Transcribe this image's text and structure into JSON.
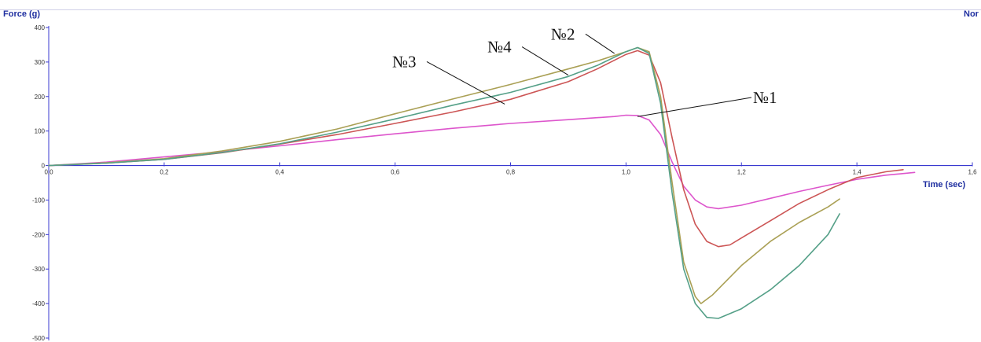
{
  "chart_data": {
    "type": "line",
    "ylabel": "Force (g)",
    "xlabel": "Time (sec)",
    "right_label": "Nor",
    "xlim": [
      0,
      1.6
    ],
    "ylim": [
      -500,
      400
    ],
    "x_ticks": [
      0,
      0.2,
      0.4,
      0.6,
      0.8,
      1.0,
      1.2,
      1.4,
      1.6
    ],
    "x_tick_labels": [
      "0,0",
      "0,2",
      "0,4",
      "0,6",
      "0,8",
      "1,0",
      "1,2",
      "1,4",
      "1,6"
    ],
    "y_ticks": [
      400,
      300,
      200,
      100,
      0,
      -100,
      -200,
      -300,
      -400,
      -500
    ],
    "y_tick_labels": [
      "400",
      "300",
      "200",
      "100",
      "0",
      "-100",
      "-200",
      "-300",
      "-400",
      "-500"
    ],
    "grid": false,
    "legend": "none",
    "axis_color": "#3a3ad0",
    "series": [
      {
        "color": "#dd55cc",
        "points": [
          [
            0,
            0
          ],
          [
            0.1,
            10
          ],
          [
            0.2,
            25
          ],
          [
            0.3,
            40
          ],
          [
            0.4,
            57
          ],
          [
            0.5,
            75
          ],
          [
            0.6,
            92
          ],
          [
            0.7,
            108
          ],
          [
            0.8,
            122
          ],
          [
            0.9,
            133
          ],
          [
            0.98,
            142
          ],
          [
            1.0,
            146
          ],
          [
            1.02,
            145
          ],
          [
            1.04,
            132
          ],
          [
            1.06,
            90
          ],
          [
            1.08,
            10
          ],
          [
            1.1,
            -60
          ],
          [
            1.12,
            -100
          ],
          [
            1.14,
            -120
          ],
          [
            1.16,
            -125
          ],
          [
            1.2,
            -115
          ],
          [
            1.25,
            -95
          ],
          [
            1.3,
            -75
          ],
          [
            1.35,
            -57
          ],
          [
            1.4,
            -40
          ],
          [
            1.45,
            -28
          ],
          [
            1.5,
            -20
          ]
        ]
      },
      {
        "color": "#cc5555",
        "points": [
          [
            0,
            0
          ],
          [
            0.1,
            7
          ],
          [
            0.2,
            18
          ],
          [
            0.3,
            37
          ],
          [
            0.4,
            62
          ],
          [
            0.5,
            90
          ],
          [
            0.6,
            122
          ],
          [
            0.7,
            155
          ],
          [
            0.8,
            192
          ],
          [
            0.9,
            243
          ],
          [
            0.95,
            280
          ],
          [
            1.0,
            322
          ],
          [
            1.02,
            333
          ],
          [
            1.04,
            320
          ],
          [
            1.06,
            240
          ],
          [
            1.08,
            80
          ],
          [
            1.1,
            -70
          ],
          [
            1.12,
            -170
          ],
          [
            1.14,
            -220
          ],
          [
            1.16,
            -235
          ],
          [
            1.18,
            -230
          ],
          [
            1.2,
            -210
          ],
          [
            1.25,
            -160
          ],
          [
            1.3,
            -110
          ],
          [
            1.35,
            -70
          ],
          [
            1.4,
            -35
          ],
          [
            1.45,
            -18
          ],
          [
            1.48,
            -12
          ]
        ]
      },
      {
        "color": "#aaa055",
        "points": [
          [
            0,
            0
          ],
          [
            0.1,
            8
          ],
          [
            0.2,
            20
          ],
          [
            0.3,
            42
          ],
          [
            0.4,
            70
          ],
          [
            0.5,
            106
          ],
          [
            0.6,
            150
          ],
          [
            0.7,
            193
          ],
          [
            0.8,
            235
          ],
          [
            0.9,
            280
          ],
          [
            0.95,
            303
          ],
          [
            1.0,
            330
          ],
          [
            1.02,
            342
          ],
          [
            1.04,
            330
          ],
          [
            1.06,
            200
          ],
          [
            1.08,
            -50
          ],
          [
            1.1,
            -280
          ],
          [
            1.12,
            -380
          ],
          [
            1.13,
            -400
          ],
          [
            1.15,
            -375
          ],
          [
            1.2,
            -290
          ],
          [
            1.25,
            -220
          ],
          [
            1.3,
            -165
          ],
          [
            1.35,
            -120
          ],
          [
            1.37,
            -97
          ]
        ]
      },
      {
        "color": "#55a088",
        "points": [
          [
            0,
            0
          ],
          [
            0.1,
            7
          ],
          [
            0.2,
            18
          ],
          [
            0.3,
            38
          ],
          [
            0.4,
            63
          ],
          [
            0.5,
            97
          ],
          [
            0.6,
            135
          ],
          [
            0.7,
            175
          ],
          [
            0.8,
            212
          ],
          [
            0.9,
            258
          ],
          [
            0.95,
            290
          ],
          [
            1.0,
            330
          ],
          [
            1.02,
            342
          ],
          [
            1.04,
            325
          ],
          [
            1.06,
            180
          ],
          [
            1.08,
            -80
          ],
          [
            1.1,
            -300
          ],
          [
            1.12,
            -400
          ],
          [
            1.14,
            -440
          ],
          [
            1.16,
            -443
          ],
          [
            1.2,
            -415
          ],
          [
            1.25,
            -360
          ],
          [
            1.3,
            -290
          ],
          [
            1.35,
            -200
          ],
          [
            1.37,
            -140
          ]
        ]
      }
    ],
    "annotations": [
      {
        "text": "№1",
        "x": 1.22,
        "y": 188,
        "pointer": [
          1.02,
          142
        ]
      },
      {
        "text": "№2",
        "x": 0.87,
        "y": 372,
        "pointer": [
          0.98,
          325
        ]
      },
      {
        "text": "№3",
        "x": 0.595,
        "y": 292,
        "pointer": [
          0.79,
          178
        ]
      },
      {
        "text": "№4",
        "x": 0.76,
        "y": 335,
        "pointer": [
          0.9,
          262
        ]
      }
    ]
  }
}
